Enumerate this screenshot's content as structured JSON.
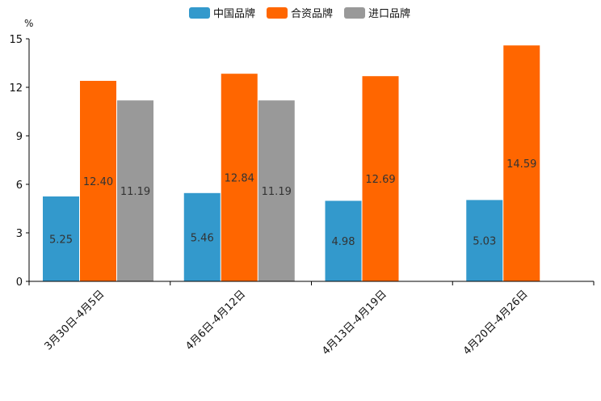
{
  "chart_data": {
    "type": "bar",
    "ylabel": "%",
    "ylim": [
      0,
      15
    ],
    "yticks": [
      "0",
      "3",
      "6",
      "9",
      "12",
      "15"
    ],
    "categories": [
      "3月30日-4月5日",
      "4月6日-4月12日",
      "4月13日-4月19日",
      "4月20日-4月26日"
    ],
    "series": [
      {
        "name": "中国品牌",
        "color": "#3399cc",
        "values": [
          5.25,
          5.46,
          4.98,
          5.03
        ],
        "labels": [
          "5.25",
          "5.46",
          "4.98",
          "5.03"
        ]
      },
      {
        "name": "合资品牌",
        "color": "#ff6600",
        "values": [
          12.4,
          12.84,
          12.69,
          14.59
        ],
        "labels": [
          "12.40",
          "12.84",
          "12.69",
          "14.59"
        ]
      },
      {
        "name": "进口品牌",
        "color": "#999999",
        "values": [
          11.19,
          11.19,
          null,
          null
        ],
        "labels": [
          "11.19",
          "11.19",
          null,
          null
        ]
      }
    ],
    "legend_position": "top-center"
  }
}
